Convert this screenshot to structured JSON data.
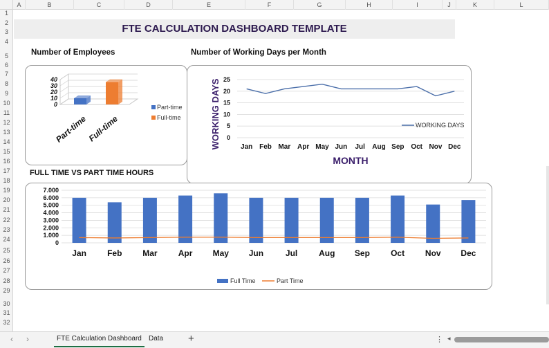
{
  "columns": [
    "A",
    "B",
    "C",
    "D",
    "E",
    "F",
    "G",
    "H",
    "I",
    "J",
    "K",
    "L"
  ],
  "rows": [
    "1",
    "2",
    "3",
    "4",
    "5",
    "6",
    "7",
    "8",
    "9",
    "10",
    "11",
    "12",
    "13",
    "14",
    "15",
    "16",
    "17",
    "18",
    "19",
    "20",
    "21",
    "22",
    "23",
    "24",
    "25",
    "26",
    "27",
    "28",
    "29",
    "30",
    "31",
    "32"
  ],
  "title": "FTE CALCULATION DASHBOARD TEMPLATE",
  "sections": {
    "employees": "Number of Employees",
    "working_days": "Number of Working Days per Month",
    "hours": "FULL TIME VS PART TIME HOURS"
  },
  "colors": {
    "full_time": "#4472c4",
    "part_time": "#ed7d31",
    "line": "#4a6ea9",
    "title": "#2d1a4f",
    "axis_title": "#3b1f6b"
  },
  "chart_data": [
    {
      "type": "bar",
      "categories": [
        "Part-time",
        "Full-time"
      ],
      "values": [
        10,
        36
      ],
      "ylim": [
        0,
        40
      ],
      "yticks": [
        "40",
        "30",
        "20",
        "10",
        "0"
      ],
      "legend": [
        "Part-time",
        "Full-time"
      ],
      "legend_position": "right",
      "grid": true,
      "style": "3d"
    },
    {
      "type": "line",
      "categories": [
        "Jan",
        "Feb",
        "Mar",
        "Apr",
        "May",
        "Jun",
        "Jul",
        "Aug",
        "Sep",
        "Oct",
        "Nov",
        "Dec"
      ],
      "series": [
        {
          "name": "WORKING DAYS",
          "values": [
            21,
            19,
            21,
            22,
            23,
            21,
            21,
            21,
            21,
            22,
            18,
            20
          ]
        }
      ],
      "ylim": [
        0,
        25
      ],
      "yticks": [
        "25",
        "20",
        "15",
        "10",
        "5",
        "0"
      ],
      "xlabel": "MONTH",
      "ylabel": "WORKING DAYS",
      "grid": true,
      "legend_position": "right"
    },
    {
      "type": "bar",
      "categories": [
        "Jan",
        "Feb",
        "Mar",
        "Apr",
        "May",
        "Jun",
        "Jul",
        "Aug",
        "Sep",
        "Oct",
        "Nov",
        "Dec"
      ],
      "series": [
        {
          "name": "Full Time",
          "type": "bar",
          "values": [
            6000,
            5400,
            6000,
            6300,
            6600,
            6000,
            6000,
            6000,
            6000,
            6300,
            5100,
            5700
          ]
        },
        {
          "name": "Part Time",
          "type": "line",
          "values": [
            700,
            650,
            700,
            750,
            750,
            700,
            700,
            700,
            700,
            750,
            600,
            650
          ]
        }
      ],
      "ylim": [
        0,
        7000
      ],
      "yticks": [
        "7.000",
        "6.000",
        "5.000",
        "4.000",
        "3.000",
        "2.000",
        "1.000",
        "0"
      ],
      "grid": true,
      "legend_position": "bottom"
    }
  ],
  "sheet_tabs": {
    "active": "FTE Calculation Dashboard",
    "other": "Data",
    "add": "+",
    "prev": "‹",
    "next": "›",
    "more": "⋮",
    "scroll_left": "◂"
  }
}
